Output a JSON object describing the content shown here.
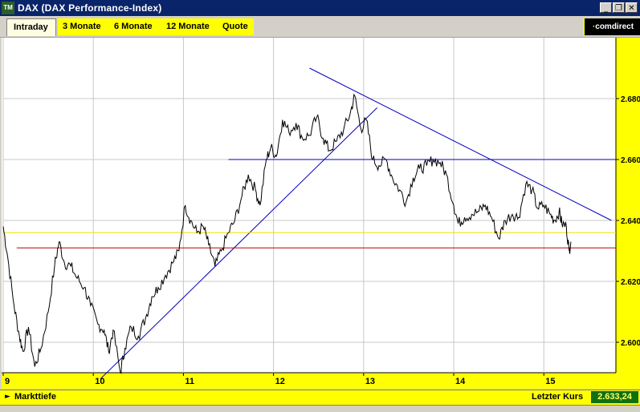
{
  "window": {
    "title": "DAX (DAX Performance-Index)",
    "icon_label": "TM",
    "controls": [
      "minimize-icon",
      "restore-icon",
      "close-icon"
    ]
  },
  "tabs": [
    {
      "label": "Intraday",
      "active": true
    },
    {
      "label": "3 Monate",
      "active": false
    },
    {
      "label": "6 Monate",
      "active": false
    },
    {
      "label": "12 Monate",
      "active": false
    },
    {
      "label": "Quote",
      "active": false
    }
  ],
  "brand": {
    "prefix": "·",
    "name": "comdirect"
  },
  "bottom_bar": {
    "left_label": "Markttiefe",
    "right_label": "Letzter Kurs",
    "last_price": "2.633,24"
  },
  "colors": {
    "tab_yellow": "#ffff00",
    "price_line": "#000000",
    "trend_line": "#0000c0",
    "support_yellow": "#f0e000",
    "support_red": "#c00000",
    "value_box": "#107010"
  },
  "chart_data": {
    "type": "line",
    "x_axis_ticks": [
      "9",
      "10",
      "11",
      "12",
      "13",
      "14",
      "15"
    ],
    "y_axis_ticks": [
      "2.600",
      "2.620",
      "2.640",
      "2.660",
      "2.680"
    ],
    "xlim": [
      9,
      15.8
    ],
    "ylim": [
      2590,
      2700
    ],
    "grid": true,
    "series": [
      {
        "values": [
          [
            9.0,
            2638
          ],
          [
            9.05,
            2628
          ],
          [
            9.12,
            2612
          ],
          [
            9.18,
            2602
          ],
          [
            9.22,
            2597
          ],
          [
            9.28,
            2605
          ],
          [
            9.35,
            2592
          ],
          [
            9.42,
            2598
          ],
          [
            9.5,
            2610
          ],
          [
            9.57,
            2625
          ],
          [
            9.62,
            2633
          ],
          [
            9.68,
            2626
          ],
          [
            9.75,
            2625
          ],
          [
            9.82,
            2621
          ],
          [
            9.9,
            2618
          ],
          [
            9.97,
            2612
          ],
          [
            10.05,
            2606
          ],
          [
            10.12,
            2604
          ],
          [
            10.17,
            2597
          ],
          [
            10.22,
            2604
          ],
          [
            10.3,
            2590
          ],
          [
            10.35,
            2598
          ],
          [
            10.42,
            2605
          ],
          [
            10.5,
            2602
          ],
          [
            10.58,
            2608
          ],
          [
            10.65,
            2615
          ],
          [
            10.72,
            2618
          ],
          [
            10.8,
            2622
          ],
          [
            10.88,
            2626
          ],
          [
            10.95,
            2630
          ],
          [
            11.02,
            2645
          ],
          [
            11.08,
            2640
          ],
          [
            11.15,
            2636
          ],
          [
            11.22,
            2638
          ],
          [
            11.28,
            2632
          ],
          [
            11.35,
            2625
          ],
          [
            11.42,
            2630
          ],
          [
            11.5,
            2636
          ],
          [
            11.57,
            2640
          ],
          [
            11.65,
            2648
          ],
          [
            11.72,
            2655
          ],
          [
            11.8,
            2650
          ],
          [
            11.85,
            2645
          ],
          [
            11.92,
            2660
          ],
          [
            11.97,
            2664
          ],
          [
            12.03,
            2661
          ],
          [
            12.1,
            2673
          ],
          [
            12.17,
            2669
          ],
          [
            12.25,
            2672
          ],
          [
            12.32,
            2667
          ],
          [
            12.4,
            2668
          ],
          [
            12.48,
            2674
          ],
          [
            12.55,
            2667
          ],
          [
            12.62,
            2663
          ],
          [
            12.7,
            2666
          ],
          [
            12.78,
            2670
          ],
          [
            12.85,
            2675
          ],
          [
            12.9,
            2681
          ],
          [
            12.97,
            2670
          ],
          [
            13.03,
            2673
          ],
          [
            13.1,
            2660
          ],
          [
            13.17,
            2658
          ],
          [
            13.25,
            2660
          ],
          [
            13.32,
            2654
          ],
          [
            13.4,
            2650
          ],
          [
            13.47,
            2646
          ],
          [
            13.55,
            2654
          ],
          [
            13.62,
            2657
          ],
          [
            13.7,
            2658
          ],
          [
            13.77,
            2660
          ],
          [
            13.85,
            2659
          ],
          [
            13.92,
            2655
          ],
          [
            14.0,
            2645
          ],
          [
            14.05,
            2639
          ],
          [
            14.12,
            2641
          ],
          [
            14.2,
            2642
          ],
          [
            14.28,
            2643
          ],
          [
            14.35,
            2645
          ],
          [
            14.42,
            2641
          ],
          [
            14.5,
            2634
          ],
          [
            14.57,
            2640
          ],
          [
            14.65,
            2642
          ],
          [
            14.72,
            2641
          ],
          [
            14.8,
            2652
          ],
          [
            14.87,
            2650
          ],
          [
            14.93,
            2644
          ],
          [
            15.0,
            2645
          ],
          [
            15.07,
            2642
          ],
          [
            15.12,
            2640
          ],
          [
            15.17,
            2643
          ],
          [
            15.2,
            2639
          ],
          [
            15.25,
            2638
          ],
          [
            15.28,
            2630
          ],
          [
            15.3,
            2633
          ]
        ]
      }
    ],
    "trend_lines": [
      {
        "from": [
          10.08,
          2588
        ],
        "to": [
          13.15,
          2677
        ],
        "color": "#0000c0"
      },
      {
        "from": [
          11.5,
          2660
        ],
        "to": [
          15.8,
          2660
        ],
        "color": "#0000c0"
      },
      {
        "from": [
          12.4,
          2690
        ],
        "to": [
          15.75,
          2640
        ],
        "color": "#0000c0"
      },
      {
        "from": [
          9.0,
          2636
        ],
        "to": [
          15.8,
          2636
        ],
        "color": "#f0e000"
      },
      {
        "from": [
          9.15,
          2631
        ],
        "to": [
          15.8,
          2631
        ],
        "color": "#c00000"
      }
    ]
  }
}
